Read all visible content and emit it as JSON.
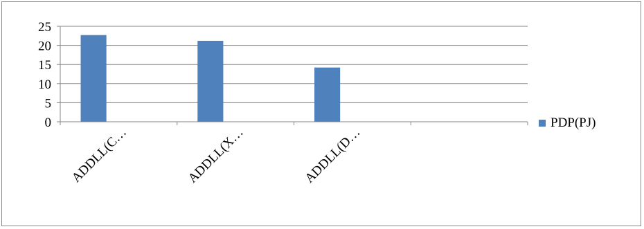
{
  "chart_data": {
    "type": "bar",
    "categories": [
      "ADDLL(C…",
      "ADDLL(X…",
      "ADDLL(D…",
      ""
    ],
    "series": [
      {
        "name": "PDP(PJ)",
        "values": [
          22.7,
          21.2,
          14.2,
          null
        ],
        "color": "#4f81bd"
      }
    ],
    "yticks": [
      0,
      5,
      10,
      15,
      20,
      25
    ],
    "ylim": [
      0,
      25
    ],
    "grid": true,
    "legend_position": "right"
  }
}
